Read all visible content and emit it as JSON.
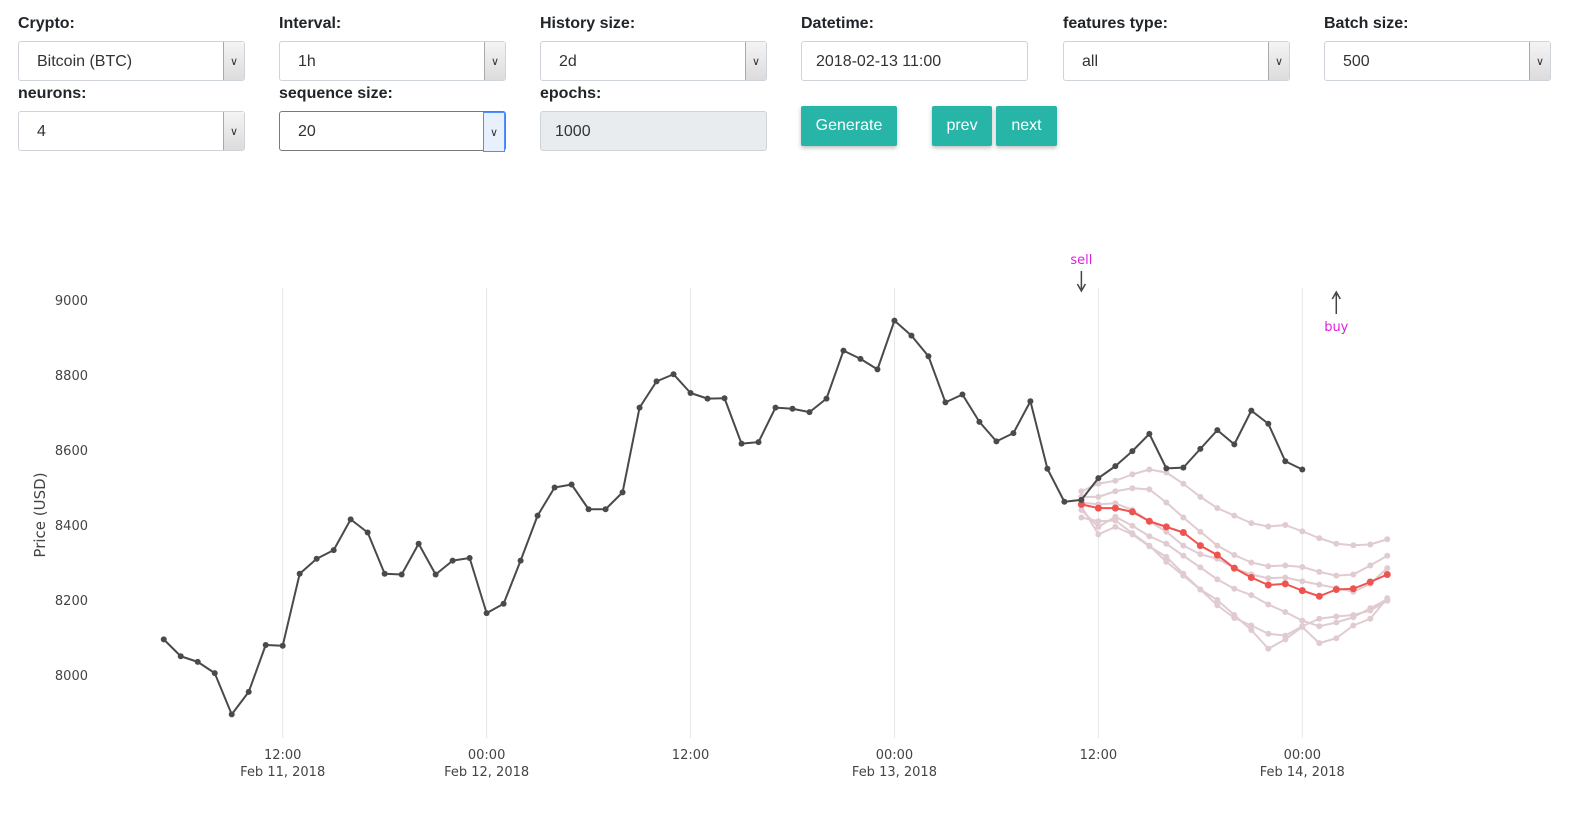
{
  "controls": {
    "crypto": {
      "label": "Crypto:",
      "value": "Bitcoin (BTC)"
    },
    "interval": {
      "label": "Interval:",
      "value": "1h"
    },
    "history": {
      "label": "History size:",
      "value": "2d"
    },
    "datetime": {
      "label": "Datetime:",
      "value": "2018-02-13 11:00"
    },
    "features": {
      "label": "features type:",
      "value": "all"
    },
    "batch": {
      "label": "Batch size:",
      "value": "500"
    },
    "neurons": {
      "label": "neurons:",
      "value": "4"
    },
    "sequence": {
      "label": "sequence size:",
      "value": "20"
    },
    "epochs": {
      "label": "epochs:",
      "value": "1000"
    }
  },
  "buttons": {
    "generate": "Generate",
    "prev": "prev",
    "next": "next"
  },
  "colors": {
    "accent": "#26b5a6",
    "history_line": "#4a4a4a",
    "prediction": "#ef5350",
    "faded": "#e0ccd0",
    "annotation": "#e01ee0"
  },
  "chart_data": {
    "type": "line",
    "ylabel": "Price (USD)",
    "yticks": [
      8000,
      8200,
      8400,
      8600,
      8800,
      9000
    ],
    "ylim": [
      7870,
      9040
    ],
    "xticks": [
      {
        "time": "2018-02-11 12:00",
        "label": "12:00",
        "sublabel": "Feb 11, 2018"
      },
      {
        "time": "2018-02-12 00:00",
        "label": "00:00",
        "sublabel": "Feb 12, 2018"
      },
      {
        "time": "2018-02-12 12:00",
        "label": "12:00",
        "sublabel": ""
      },
      {
        "time": "2018-02-13 00:00",
        "label": "00:00",
        "sublabel": "Feb 13, 2018"
      },
      {
        "time": "2018-02-13 12:00",
        "label": "12:00",
        "sublabel": ""
      },
      {
        "time": "2018-02-14 00:00",
        "label": "00:00",
        "sublabel": "Feb 14, 2018"
      }
    ],
    "history_start": "2018-02-11 05:00",
    "history_values": [
      8095,
      8050,
      8035,
      8005,
      7895,
      7955,
      8080,
      8078,
      8270,
      8310,
      8333,
      8415,
      8380,
      8270,
      8268,
      8350,
      8268,
      8305,
      8312,
      8165,
      8190,
      8305,
      8425,
      8500,
      8508,
      8442,
      8442,
      8487,
      8713,
      8783,
      8802,
      8752,
      8737,
      8738,
      8617,
      8621,
      8713,
      8710,
      8701,
      8737,
      8865,
      8843,
      8815,
      8945,
      8905,
      8850,
      8727,
      8748,
      8675,
      8623,
      8645,
      8730,
      8550,
      8462,
      8467,
      8525,
      8557,
      8597,
      8643,
      8551,
      8553,
      8603,
      8653,
      8615,
      8705,
      8670,
      8570,
      8548
    ],
    "prediction_start": "2018-02-13 11:00",
    "prediction": [
      8455,
      8445,
      8445,
      8435,
      8410,
      8395,
      8380,
      8345,
      8320,
      8285,
      8260,
      8240,
      8243,
      8225,
      8210,
      8228,
      8230,
      8248,
      8268
    ],
    "faded_series": [
      [
        8490,
        8510,
        8518,
        8535,
        8548,
        8540,
        8510,
        8475,
        8445,
        8425,
        8405,
        8396,
        8400,
        8383,
        8365,
        8350,
        8346,
        8348,
        8362
      ],
      [
        8475,
        8475,
        8490,
        8498,
        8495,
        8460,
        8420,
        8382,
        8345,
        8320,
        8300,
        8290,
        8292,
        8288,
        8275,
        8265,
        8268,
        8292,
        8318
      ],
      [
        8460,
        8455,
        8458,
        8440,
        8410,
        8382,
        8345,
        8322,
        8310,
        8285,
        8268,
        8258,
        8260,
        8250,
        8241,
        8232,
        8222,
        8243,
        8285
      ],
      [
        8440,
        8395,
        8422,
        8398,
        8370,
        8350,
        8318,
        8287,
        8255,
        8230,
        8213,
        8188,
        8168,
        8145,
        8130,
        8140,
        8154,
        8178,
        8202
      ],
      [
        8420,
        8410,
        8412,
        8378,
        8345,
        8302,
        8265,
        8228,
        8186,
        8152,
        8132,
        8110,
        8105,
        8130,
        8150,
        8156,
        8160,
        8172,
        8198
      ],
      [
        8450,
        8375,
        8395,
        8375,
        8343,
        8315,
        8270,
        8228,
        8200,
        8160,
        8120,
        8070,
        8095,
        8128,
        8085,
        8098,
        8132,
        8150,
        8205
      ]
    ],
    "annotations": [
      {
        "text": "sell",
        "time": "2018-02-13 11:00",
        "direction": "down"
      },
      {
        "text": "buy",
        "time": "2018-02-14 02:00",
        "direction": "up"
      }
    ]
  }
}
